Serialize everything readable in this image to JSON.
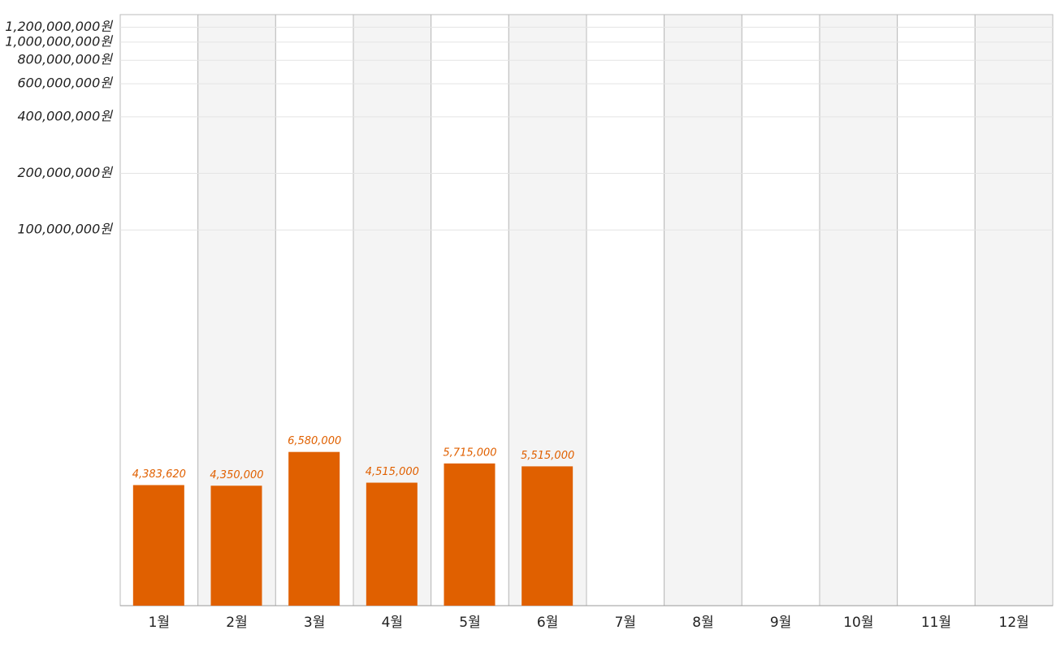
{
  "chart_data": {
    "type": "bar",
    "categories": [
      "1월",
      "2월",
      "3월",
      "4월",
      "5월",
      "6월",
      "7월",
      "8월",
      "9월",
      "10월",
      "11월",
      "12월"
    ],
    "values": [
      4383620,
      4350000,
      6580000,
      4515000,
      5715000,
      5515000,
      null,
      null,
      null,
      null,
      null,
      null
    ],
    "value_labels": [
      "4,383,620",
      "4,350,000",
      "6,580,000",
      "4,515,000",
      "5,715,000",
      "5,515,000",
      null,
      null,
      null,
      null,
      null,
      null
    ],
    "color": "#e06000",
    "log_scale": true,
    "ylim": [
      1000000,
      1400000000
    ],
    "yticks": [
      {
        "value": 100000000,
        "label": "100,000,000원"
      },
      {
        "value": 200000000,
        "label": "200,000,000원"
      },
      {
        "value": 400000000,
        "label": "400,000,000원"
      },
      {
        "value": 600000000,
        "label": "600,000,000원"
      },
      {
        "value": 800000000,
        "label": "800,000,000원"
      },
      {
        "value": 1000000000,
        "label": "1,000,000,000원"
      },
      {
        "value": 1200000000,
        "label": "1,200,000,000원"
      }
    ],
    "grid": true
  }
}
